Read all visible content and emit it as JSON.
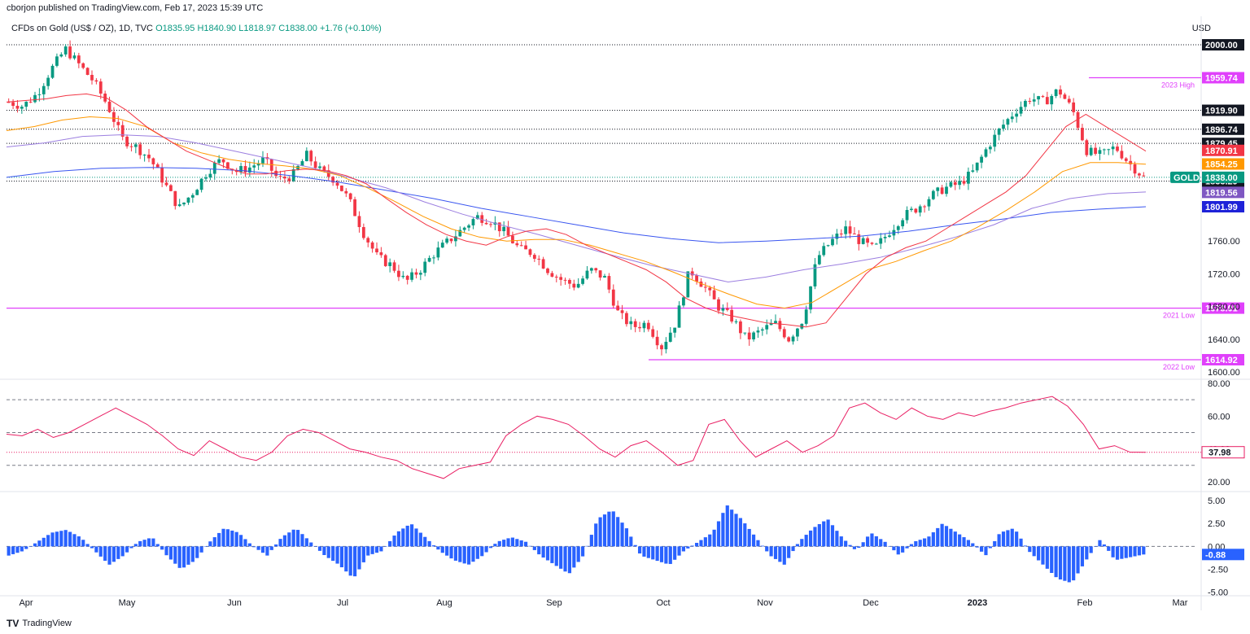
{
  "header": {
    "published": "cborjon published on TradingView.com, Feb 17, 2023 15:39 UTC"
  },
  "symbol": {
    "name": "CFDs on Gold (US$ / OZ), 1D, TVC",
    "open": "O1835.95",
    "high": "H1840.90",
    "low": "L1818.97",
    "close": "C1838.00",
    "change": "+1.76 (+0.10%)"
  },
  "currency": "USD",
  "footer": {
    "brand": "TradingView"
  },
  "colors": {
    "up": "#089981",
    "down": "#f23645",
    "ema20": "#f23645",
    "ema50": "#ff9800",
    "ema100": "#9c7fe0",
    "ema200": "#3a56f0",
    "level": "#e040fb",
    "rsi": "#e91e63",
    "hist": "#2962ff"
  },
  "chart_data": [
    {
      "type": "candlestick",
      "title": "CFDs on Gold (US$ / OZ), 1D, TVC",
      "x_ticks": [
        "Apr",
        "May",
        "Jun",
        "Jul",
        "Aug",
        "Sep",
        "Oct",
        "Nov",
        "Dec",
        "2023",
        "Feb",
        "Mar"
      ],
      "y_ticks": [
        1600,
        1640,
        1680,
        1720,
        1760,
        1800,
        1840,
        1880,
        1920,
        1960,
        2000
      ],
      "ylim": [
        1595,
        2010
      ],
      "close_path": [
        1930,
        1925,
        1940,
        1970,
        1995,
        1975,
        1955,
        1925,
        1885,
        1875,
        1860,
        1830,
        1800,
        1820,
        1845,
        1860,
        1845,
        1850,
        1860,
        1835,
        1840,
        1865,
        1845,
        1835,
        1810,
        1770,
        1740,
        1730,
        1710,
        1725,
        1745,
        1760,
        1775,
        1790,
        1785,
        1770,
        1750,
        1745,
        1725,
        1712,
        1705,
        1725,
        1715,
        1670,
        1655,
        1660,
        1630,
        1660,
        1725,
        1705,
        1680,
        1665,
        1640,
        1650,
        1660,
        1640,
        1665,
        1740,
        1760,
        1775,
        1760,
        1750,
        1770,
        1790,
        1800,
        1815,
        1825,
        1830,
        1845,
        1875,
        1900,
        1920,
        1935,
        1930,
        1945,
        1920,
        1870,
        1865,
        1875,
        1855,
        1838
      ],
      "ema20": [
        1930,
        1932,
        1934,
        1938,
        1940,
        1935,
        1920,
        1900,
        1885,
        1870,
        1860,
        1850,
        1842,
        1842,
        1846,
        1848,
        1846,
        1840,
        1830,
        1812,
        1795,
        1780,
        1768,
        1760,
        1755,
        1765,
        1772,
        1775,
        1768,
        1755,
        1745,
        1735,
        1725,
        1710,
        1690,
        1678,
        1670,
        1665,
        1660,
        1658,
        1655,
        1660,
        1690,
        1720,
        1740,
        1752,
        1760,
        1775,
        1790,
        1805,
        1820,
        1840,
        1870,
        1900,
        1915,
        1900,
        1885,
        1870
      ],
      "ema50": [
        1895,
        1900,
        1908,
        1912,
        1910,
        1900,
        1880,
        1868,
        1860,
        1855,
        1852,
        1848,
        1840,
        1825,
        1808,
        1790,
        1775,
        1765,
        1760,
        1762,
        1762,
        1755,
        1745,
        1735,
        1722,
        1708,
        1695,
        1683,
        1678,
        1685,
        1705,
        1725,
        1735,
        1748,
        1760,
        1778,
        1798,
        1820,
        1845,
        1856,
        1856,
        1854
      ],
      "ema100": [
        1875,
        1880,
        1888,
        1890,
        1888,
        1880,
        1870,
        1860,
        1850,
        1838,
        1825,
        1808,
        1793,
        1780,
        1768,
        1755,
        1742,
        1730,
        1720,
        1710,
        1716,
        1725,
        1732,
        1740,
        1752,
        1765,
        1780,
        1800,
        1812,
        1818,
        1820
      ],
      "ema200": [
        1838,
        1845,
        1849,
        1850,
        1849,
        1846,
        1840,
        1832,
        1822,
        1812,
        1800,
        1790,
        1780,
        1770,
        1763,
        1758,
        1760,
        1763,
        1766,
        1772,
        1780,
        1787,
        1795,
        1799,
        1802
      ],
      "levels": [
        {
          "value": 2000.0,
          "label": "2000.00",
          "style": "dotted",
          "color": "#131722"
        },
        {
          "value": 1959.74,
          "label": "2023 High",
          "tag": "1959.74",
          "color": "#e040fb"
        },
        {
          "value": 1919.9,
          "label": "1919.90",
          "style": "dotted",
          "color": "#131722"
        },
        {
          "value": 1896.74,
          "label": "1896.74",
          "style": "dotted",
          "color": "#131722"
        },
        {
          "value": 1879.45,
          "label": "1879.45",
          "style": "dotted",
          "color": "#131722"
        },
        {
          "value": 1833.29,
          "label": "1833.29",
          "style": "dotted",
          "color": "#131722"
        },
        {
          "value": 1678.01,
          "label": "2021 Low",
          "tag": "1678.01",
          "color": "#e040fb"
        },
        {
          "value": 1614.92,
          "label": "2022 Low",
          "tag": "1614.92",
          "color": "#e040fb"
        }
      ],
      "price_tags": [
        {
          "value": 1870.91,
          "label": "1870.91",
          "color": "#f23645"
        },
        {
          "value": 1854.25,
          "label": "1854.25",
          "color": "#ff9800"
        },
        {
          "value": 1838.0,
          "label": "1838.00",
          "color": "#089981",
          "name": "GOLD"
        },
        {
          "value": 1819.56,
          "label": "1819.56",
          "color": "#7e57c2"
        },
        {
          "value": 1801.99,
          "label": "1801.99",
          "color": "#1e22d8"
        }
      ]
    },
    {
      "type": "line",
      "ylim": [
        15,
        82
      ],
      "y_ticks": [
        20,
        40,
        60,
        80
      ],
      "y_tick_labels": [
        "20.00",
        "40.00",
        "60.00",
        "80.00"
      ],
      "bands": [
        70,
        50,
        30
      ],
      "rsi_path": [
        49,
        48,
        52,
        47,
        50,
        55,
        60,
        65,
        60,
        55,
        48,
        40,
        36,
        45,
        40,
        35,
        33,
        38,
        48,
        52,
        50,
        45,
        40,
        38,
        35,
        33,
        28,
        25,
        22,
        28,
        30,
        32,
        48,
        55,
        60,
        58,
        55,
        48,
        40,
        35,
        42,
        45,
        38,
        30,
        33,
        55,
        58,
        45,
        35,
        40,
        45,
        38,
        42,
        48,
        65,
        68,
        62,
        58,
        65,
        60,
        58,
        62,
        60,
        63,
        65,
        68,
        70,
        72,
        66,
        55,
        40,
        42,
        38,
        37.98
      ],
      "last": {
        "value": 37.98,
        "label": "37.98"
      }
    },
    {
      "type": "bar",
      "ylim": [
        -5.2,
        5.8
      ],
      "y_ticks": [
        -5,
        -2.5,
        0,
        2.5,
        5
      ],
      "y_tick_labels": [
        "-5.00",
        "-2.50",
        "0.00",
        "2.50",
        "5.00"
      ],
      "hist_path": [
        -1,
        -0.5,
        0.5,
        1.5,
        1.8,
        1,
        -0.5,
        -2,
        -1,
        0.5,
        1,
        -1,
        -2.5,
        -1.5,
        0.5,
        2,
        1.5,
        0,
        -1,
        1,
        2,
        0.5,
        -1,
        -2,
        -3.5,
        -1,
        -0.5,
        1.5,
        2.5,
        1,
        -0.5,
        -1.5,
        -2,
        -1,
        0.5,
        1,
        0.5,
        -1,
        -2,
        -3,
        -1,
        3,
        4,
        2,
        -1,
        -1.5,
        -2,
        -0.5,
        0.5,
        1.5,
        4.5,
        3,
        1,
        -1,
        -2,
        0.5,
        2,
        3,
        1,
        -0.5,
        1.5,
        0.5,
        -1,
        0.5,
        1,
        2.5,
        1.5,
        0.5,
        -1,
        1.5,
        2,
        -0.5,
        -2,
        -3.5,
        -4,
        -1.5,
        0.8,
        -1.5,
        -1.2,
        -0.88
      ],
      "last": {
        "value": -0.88,
        "label": "-0.88"
      }
    }
  ]
}
